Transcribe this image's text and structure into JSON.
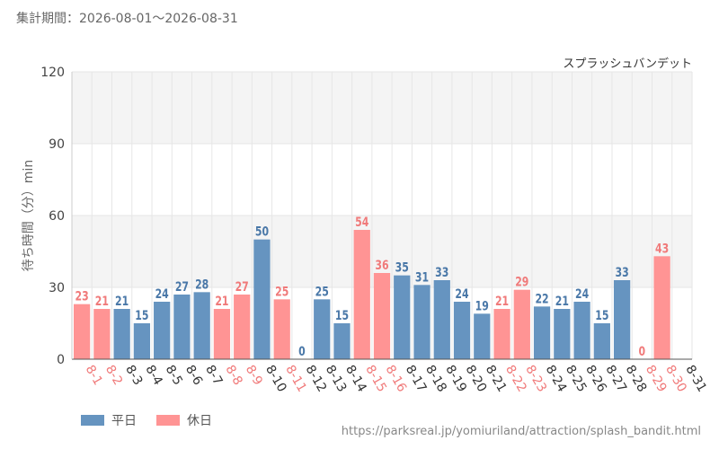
{
  "header": {
    "period_text": "集計期間：2026-08-01～2026-08-31"
  },
  "legend": {
    "weekday_label": "平日",
    "holiday_label": "休日"
  },
  "footer": {
    "source_url": "https://parksreal.jp/yomiuriland/attraction/splash_bandit.html"
  },
  "colors": {
    "weekday": "#6694c0",
    "holiday": "#ff9494",
    "grid": "#e6e6e6",
    "band": "#f4f4f4",
    "axis": "#555555"
  },
  "chart_data": {
    "type": "bar",
    "title": "スプラッシュバンデット",
    "ylabel": "待ち時間（分）min",
    "xlabel": "",
    "ylim": [
      0,
      120
    ],
    "yticks": [
      0,
      30,
      60,
      90,
      120
    ],
    "categories": [
      "8-1",
      "8-2",
      "8-3",
      "8-4",
      "8-5",
      "8-6",
      "8-7",
      "8-8",
      "8-9",
      "8-10",
      "8-11",
      "8-12",
      "8-13",
      "8-14",
      "8-15",
      "8-16",
      "8-17",
      "8-18",
      "8-19",
      "8-20",
      "8-21",
      "8-22",
      "8-23",
      "8-24",
      "8-25",
      "8-26",
      "8-27",
      "8-28",
      "8-29",
      "8-30",
      "8-31"
    ],
    "values": [
      23,
      21,
      21,
      15,
      24,
      27,
      28,
      21,
      27,
      50,
      25,
      0,
      25,
      15,
      54,
      36,
      35,
      31,
      33,
      24,
      19,
      21,
      29,
      22,
      21,
      24,
      15,
      33,
      0,
      43,
      null
    ],
    "day_type": [
      "休日",
      "休日",
      "平日",
      "平日",
      "平日",
      "平日",
      "平日",
      "休日",
      "休日",
      "平日",
      "休日",
      "平日",
      "平日",
      "平日",
      "休日",
      "休日",
      "平日",
      "平日",
      "平日",
      "平日",
      "平日",
      "休日",
      "休日",
      "平日",
      "平日",
      "平日",
      "平日",
      "平日",
      "休日",
      "休日",
      "平日"
    ],
    "series": [
      {
        "name": "平日"
      },
      {
        "name": "休日"
      }
    ],
    "grid": true,
    "legend_position": "bottom-left"
  }
}
